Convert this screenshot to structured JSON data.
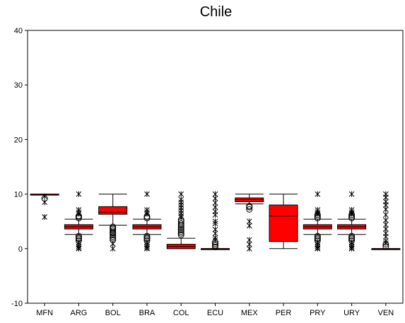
{
  "chart_data": {
    "type": "boxplot",
    "title": "Chile",
    "xlabel": "",
    "ylabel": "",
    "ylim": [
      -10,
      40
    ],
    "yticks": [
      "-10",
      "0",
      "10",
      "20",
      "30",
      "40"
    ],
    "grid": false,
    "legend": "none",
    "box_color": "#ff0000",
    "categories": [
      "MFN",
      "ARG",
      "BOL",
      "BRA",
      "COL",
      "ECU",
      "MEX",
      "PER",
      "PRY",
      "URY",
      "VEN"
    ],
    "boxes": [
      {
        "category": "MFN",
        "min": 10,
        "q1": 10,
        "median": 10,
        "q3": 10,
        "max": 10,
        "outliers_circle": [
          9.2
        ],
        "outliers_star": [
          9.6,
          8.5,
          5.8
        ]
      },
      {
        "category": "ARG",
        "min": 2.6,
        "q1": 3.6,
        "median": 4.0,
        "q3": 4.4,
        "max": 5.4,
        "outliers_circle": [
          5.6,
          5.9,
          6.0,
          2.3,
          2.0,
          1.8,
          1.5
        ],
        "outliers_star": [
          10,
          7.1,
          6.7,
          6.4,
          1.1,
          0.7,
          0.4,
          0.1,
          0
        ]
      },
      {
        "category": "BOL",
        "min": 4.3,
        "q1": 6.3,
        "median": 6.7,
        "q3": 7.7,
        "max": 10,
        "outliers_circle": [
          4.0,
          3.8,
          3.6,
          3.3,
          3.0,
          2.8,
          2.5,
          2.2,
          1.9,
          1.6
        ],
        "outliers_star": [
          0.9,
          0
        ]
      },
      {
        "category": "BRA",
        "min": 2.6,
        "q1": 3.6,
        "median": 4.0,
        "q3": 4.4,
        "max": 5.4,
        "outliers_circle": [
          5.6,
          5.9,
          2.3,
          2.0,
          1.8,
          1.5
        ],
        "outliers_star": [
          10,
          7.1,
          6.7,
          6.4,
          1.1,
          0.7,
          0.4,
          0.1,
          0
        ]
      },
      {
        "category": "COL",
        "min": 0,
        "q1": 0,
        "median": 0.4,
        "q3": 0.8,
        "max": 1.9,
        "outliers_circle": [
          2.5,
          2.8,
          3.1,
          3.4,
          3.7,
          4.0,
          4.3,
          4.6,
          5.0,
          5.3
        ],
        "outliers_star": [
          10,
          9.0,
          8.5,
          8.0,
          7.5,
          7.0,
          6.5,
          6.0,
          5.7
        ]
      },
      {
        "category": "ECU",
        "min": 0,
        "q1": 0,
        "median": 0,
        "q3": 0,
        "max": 0,
        "outliers_circle": [
          0.3,
          0.6,
          0.9,
          1.2
        ],
        "outliers_star": [
          10,
          9.2,
          8.4,
          7.6,
          6.8,
          6.2,
          5.0,
          4.6,
          3.5,
          2.8,
          2.0,
          1.6
        ]
      },
      {
        "category": "MEX",
        "min": 8.2,
        "q1": 8.6,
        "median": 9.0,
        "q3": 9.3,
        "max": 10,
        "outliers_circle": [
          7.8,
          7.6,
          7.2
        ],
        "outliers_star": [
          5.0,
          4.2,
          1.6,
          0.8,
          0
        ]
      },
      {
        "category": "PER",
        "min": 0,
        "q1": 1.3,
        "median": 6.0,
        "q3": 8.0,
        "max": 10,
        "outliers_circle": [],
        "outliers_star": []
      },
      {
        "category": "PRY",
        "min": 2.6,
        "q1": 3.6,
        "median": 4.0,
        "q3": 4.4,
        "max": 5.4,
        "outliers_circle": [
          5.6,
          5.9,
          6.2,
          2.3,
          2.0,
          1.8,
          1.5
        ],
        "outliers_star": [
          10,
          7.1,
          6.7,
          6.4,
          1.1,
          0.7,
          0.4,
          0.1,
          0
        ]
      },
      {
        "category": "URY",
        "min": 2.6,
        "q1": 3.6,
        "median": 4.0,
        "q3": 4.4,
        "max": 5.4,
        "outliers_circle": [
          5.6,
          5.9,
          6.2,
          2.3,
          2.0,
          1.8,
          1.5
        ],
        "outliers_star": [
          10,
          7.1,
          6.7,
          6.4,
          1.1,
          0.7,
          0.4,
          0.1,
          0
        ]
      },
      {
        "category": "VEN",
        "min": 0,
        "q1": 0,
        "median": 0,
        "q3": 0,
        "max": 0,
        "outliers_circle": [
          0.4,
          0.8
        ],
        "outliers_star": [
          10,
          9.4,
          8.6,
          8.0,
          7.2,
          6.2,
          5.2,
          4.4,
          3.6,
          2.8,
          2.2,
          1.4,
          1.0
        ]
      }
    ]
  }
}
